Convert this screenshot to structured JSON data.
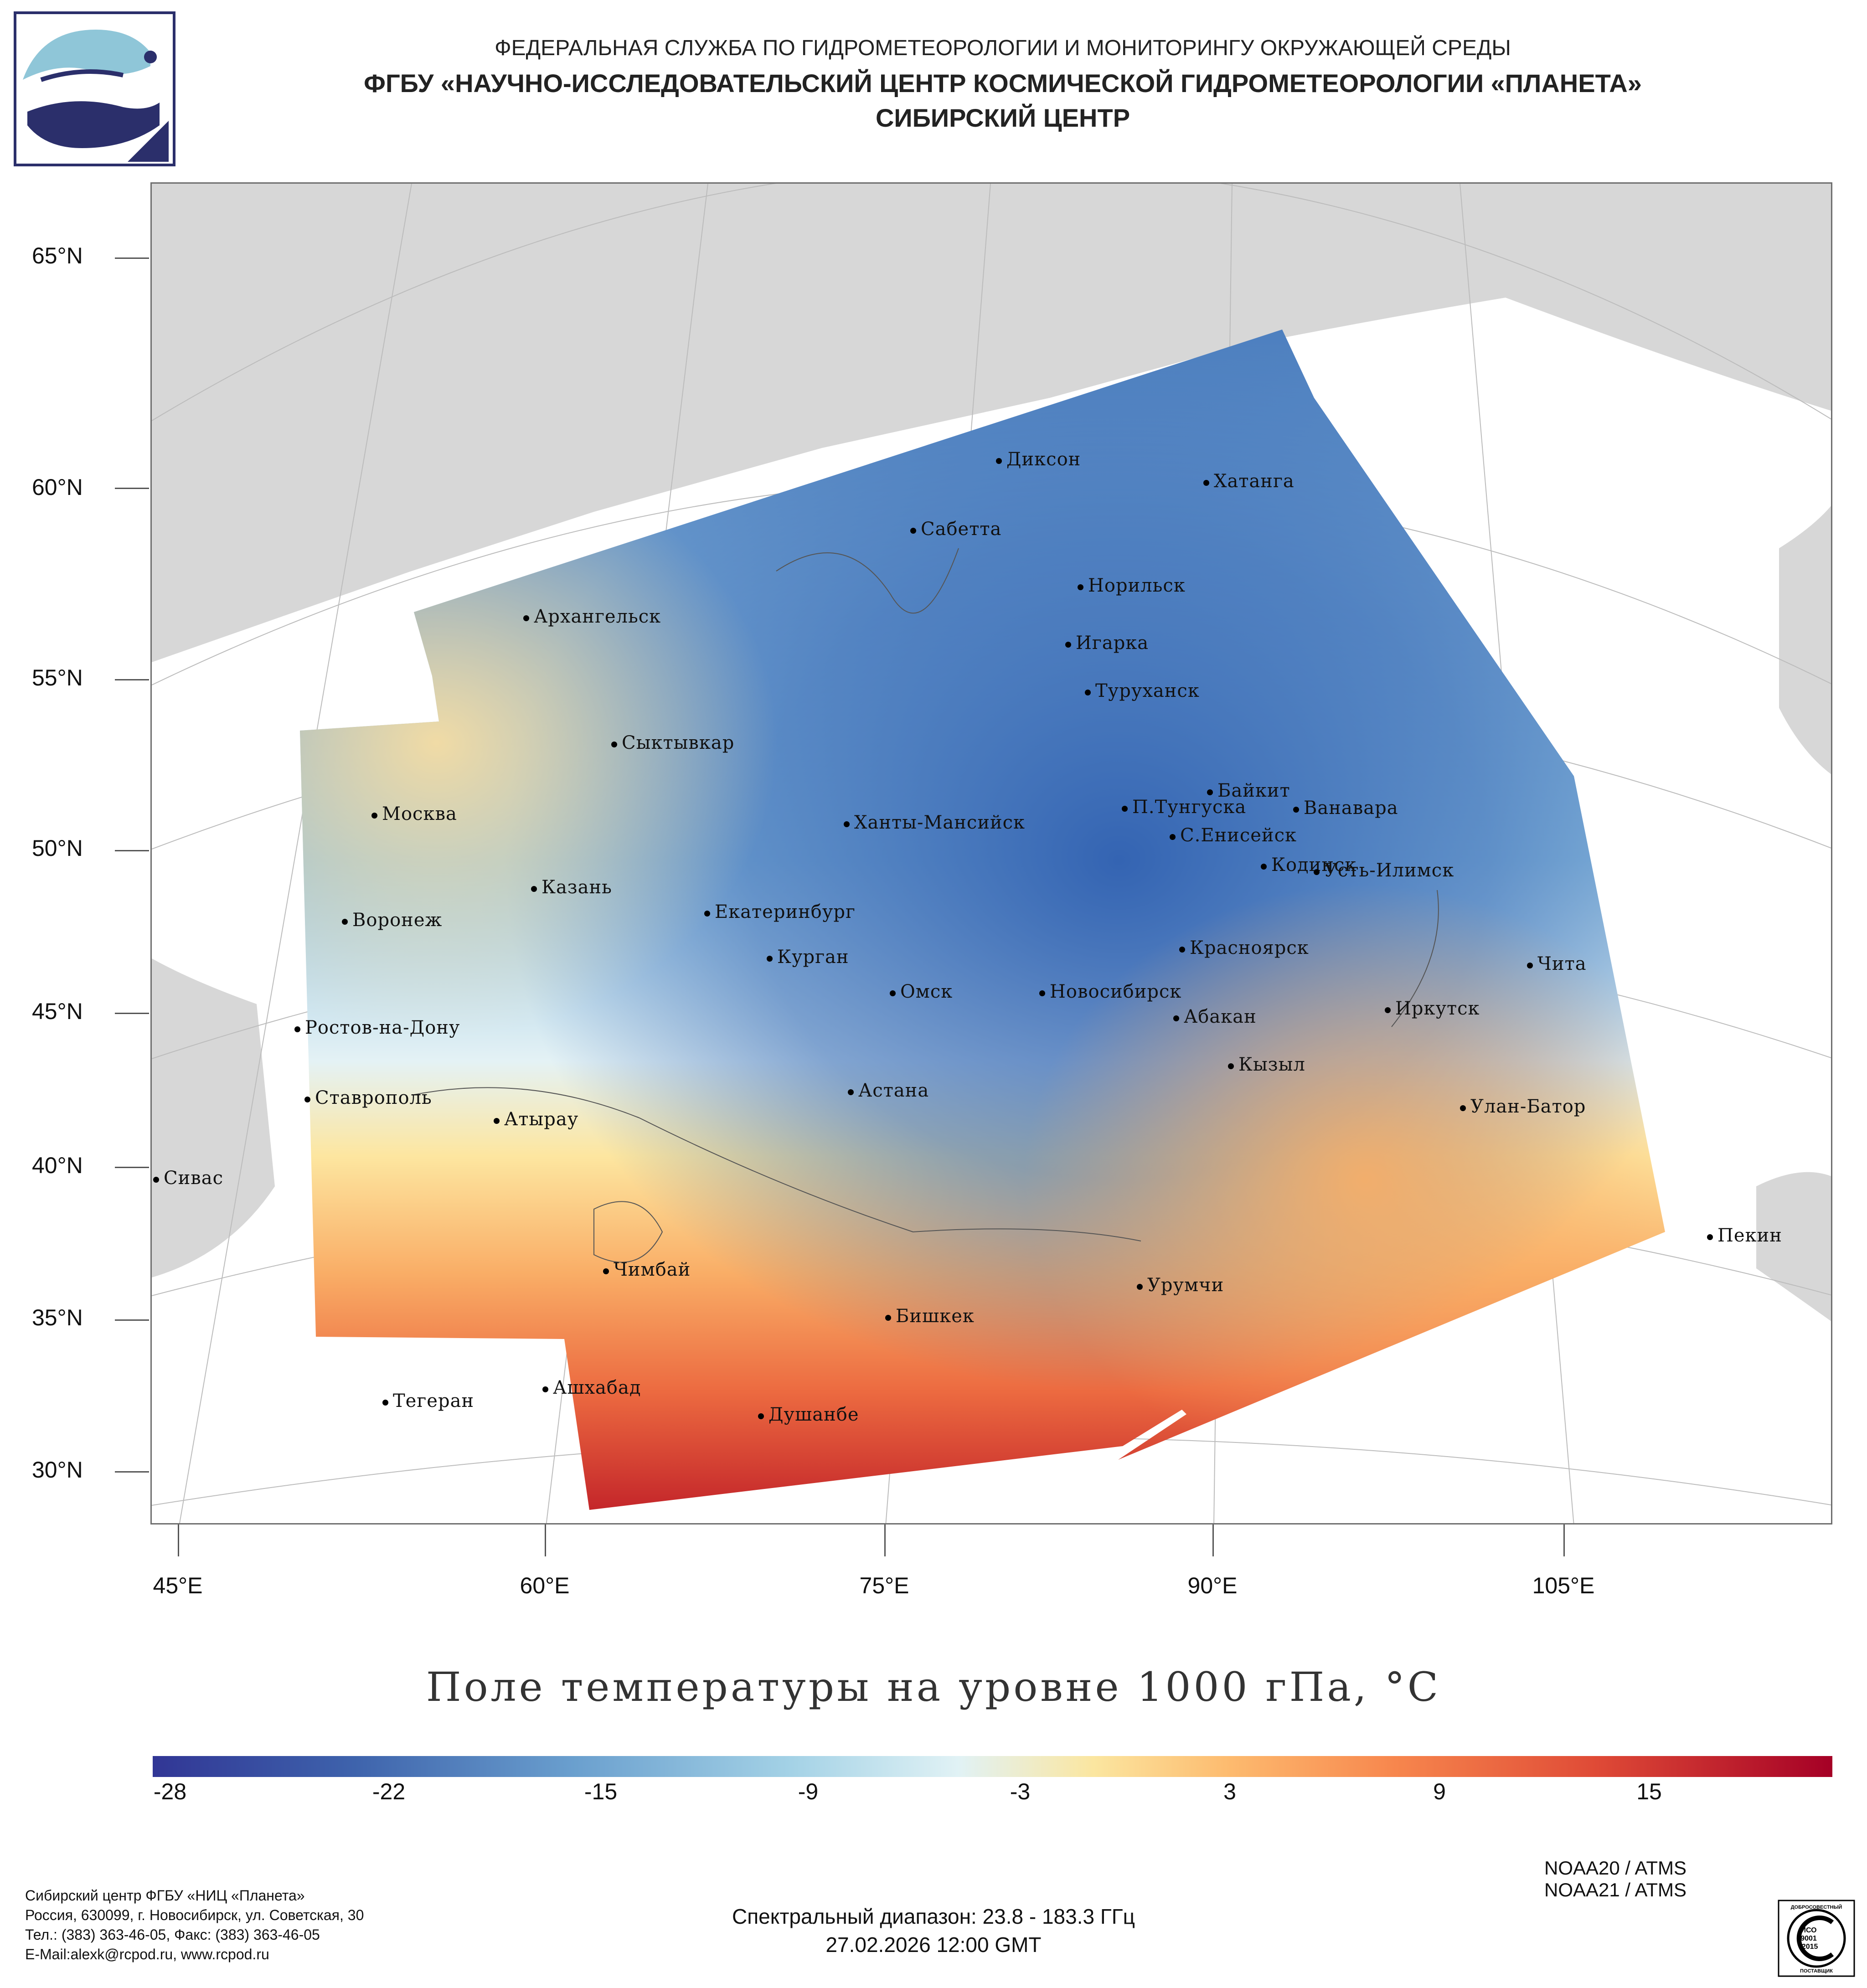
{
  "header": {
    "org": "ФЕДЕРАЛЬНАЯ СЛУЖБА ПО ГИДРОМЕТЕОРОЛОГИИ И МОНИТОРИНГУ ОКРУЖАЮЩЕЙ СРЕДЫ",
    "institution": "ФГБУ «НАУЧНО-ИССЛЕДОВАТЕЛЬСКИЙ ЦЕНТР КОСМИЧЕСКОЙ ГИДРОМЕТЕОРОЛОГИИ «ПЛАНЕТА»",
    "center": "СИБИРСКИЙ ЦЕНТР"
  },
  "map": {
    "lat_labels": [
      "65°N",
      "60°N",
      "55°N",
      "50°N",
      "45°N",
      "40°N",
      "35°N",
      "30°N"
    ],
    "lon_labels": [
      "45°E",
      "60°E",
      "75°E",
      "90°E",
      "105°E"
    ],
    "cities": [
      "Диксон",
      "Хатанга",
      "Сабетта",
      "Норильск",
      "Архангельск",
      "Игарка",
      "Туруханск",
      "Сыктывкар",
      "Байкит",
      "П.Тунгуска",
      "Ванавара",
      "Москва",
      "Ханты-Мансийск",
      "С.Енисейск",
      "Кодинск",
      "Усть-Илимск",
      "Казань",
      "Екатеринбург",
      "Воронеж",
      "Красноярск",
      "Курган",
      "Чита",
      "Омск",
      "Новосибирск",
      "Иркутск",
      "Абакан",
      "Ростов-на-Дону",
      "Кызыл",
      "Астана",
      "Ставрополь",
      "Улан-Батор",
      "Атырау",
      "Сивас",
      "Пекин",
      "Чимбай",
      "Урумчи",
      "Бишкек",
      "Ашхабад",
      "Тегеран",
      "Душанбе"
    ]
  },
  "title": "Поле температуры на уровне 1000 гПа, °C",
  "legend": {
    "ticks": [
      "-28",
      "-22",
      "-15",
      "-9",
      "-3",
      "3",
      "9",
      "15"
    ],
    "colors": [
      "#313695",
      "#4575b4",
      "#74add1",
      "#abd9e9",
      "#e0f3f8",
      "#fee090",
      "#fdae61",
      "#f46d43",
      "#d73027",
      "#a50026"
    ]
  },
  "footer": {
    "org_line": "Сибирский центр ФГБУ «НИЦ «Планета»",
    "address": "Россия, 630099, г. Новосибирск, ул. Советская, 30",
    "phones": "Тел.: (383) 363-46-05, Факс: (383) 363-46-05",
    "email": "E-Mail:alexk@rcpod.ru, www.rcpod.ru",
    "spectral": "Спектральный диапазон: 23.8 - 183.3 ГГц",
    "datetime": "27.02.2026 12:00 GMT",
    "sat1": "NOAA20 / ATMS",
    "sat2": "NOAA21 / ATMS",
    "iso_top": "ДОБРОСОВЕСТНЫЙ",
    "iso_mid1": "ИСО",
    "iso_mid2": "9001",
    "iso_mid3": "-2015",
    "iso_bottom": "ПОСТАВЩИК"
  }
}
